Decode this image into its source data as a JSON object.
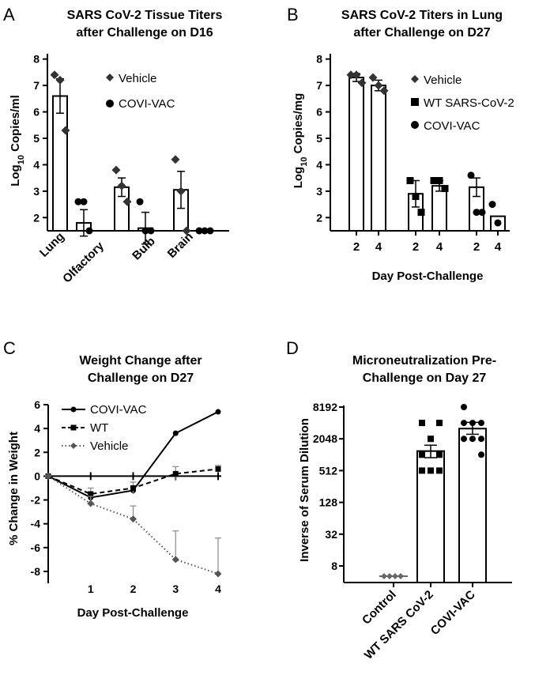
{
  "panels": {
    "A": {
      "letter": "A",
      "title_line1": "SARS CoV-2 Tissue Titers",
      "title_line2": "after Challenge on D16",
      "ylabel_main": "Log",
      "ylabel_sub": "10",
      "ylabel_rest": " Copies/ml",
      "legend": [
        "Vehicle",
        "COVI-VAC"
      ]
    },
    "B": {
      "letter": "B",
      "title_line1": "SARS CoV-2 Titers in Lung",
      "title_line2": "after Challenge on D27",
      "ylabel_main": "Log",
      "ylabel_sub": "10",
      "ylabel_rest": " Copies/mg",
      "xlabel": "Day Post-Challenge",
      "legend": [
        "Vehicle",
        "WT SARS-CoV-2",
        "COVI-VAC"
      ]
    },
    "C": {
      "letter": "C",
      "title_line1": "Weight Change after",
      "title_line2": "Challenge on D27",
      "ylabel": "% Change in Weight",
      "xlabel": "Day Post-Challenge",
      "legend": [
        "COVI-VAC",
        "WT",
        "Vehicle"
      ]
    },
    "D": {
      "letter": "D",
      "title_line1": "Microneutralization Pre-",
      "title_line2": "Challenge on Day 27",
      "ylabel": "Inverse of Serum Dilution"
    }
  },
  "chart_data": [
    {
      "panel": "A",
      "type": "bar",
      "categories": [
        "Lung",
        "Olfactory",
        "Bulb",
        "Brain"
      ],
      "tissues": [
        {
          "labels": [
            "Lung"
          ],
          "vehicle": {
            "mean": 6.6,
            "sem": 0.65,
            "points": [
              7.4,
              7.2,
              5.3
            ]
          },
          "covivac": {
            "mean": 1.8,
            "sem": 0.5,
            "points": [
              2.6,
              2.6,
              1.5
            ]
          }
        },
        {
          "labels": [
            "Olfactory",
            "Bulb"
          ],
          "vehicle": {
            "mean": 3.15,
            "sem": 0.35,
            "points": [
              3.8,
              3.2,
              2.6
            ]
          },
          "covivac": {
            "mean": 1.6,
            "sem": 0.6,
            "points": [
              2.6,
              1.5,
              1.5
            ]
          }
        },
        {
          "labels": [
            "Brain"
          ],
          "vehicle": {
            "mean": 3.05,
            "sem": 0.7,
            "points": [
              4.2,
              3.0,
              1.5
            ]
          },
          "covivac": {
            "mean": 1.5,
            "sem": 0,
            "points": [
              1.5,
              1.5,
              1.5
            ]
          }
        }
      ],
      "yticks": [
        2,
        3,
        4,
        5,
        6,
        7,
        8
      ],
      "ylim": [
        1.5,
        8.2
      ],
      "ylabel": "Log10 Copies/ml"
    },
    {
      "panel": "B",
      "type": "bar",
      "groups": [
        "Vehicle",
        "WT SARS-CoV-2",
        "COVI-VAC"
      ],
      "days": [
        "2",
        "4"
      ],
      "bars": [
        {
          "group": "Vehicle",
          "day": "2",
          "mean": 7.3,
          "sem": 0.15,
          "points": [
            7.4,
            7.4,
            7.1
          ]
        },
        {
          "group": "Vehicle",
          "day": "4",
          "mean": 7.0,
          "sem": 0.2,
          "points": [
            7.3,
            7.0,
            6.8
          ]
        },
        {
          "group": "WT SARS-CoV-2",
          "day": "2",
          "mean": 2.9,
          "sem": 0.5,
          "points": [
            3.4,
            2.8,
            2.2
          ]
        },
        {
          "group": "WT SARS-CoV-2",
          "day": "4",
          "mean": 3.2,
          "sem": 0.2,
          "points": [
            3.4,
            3.4,
            3.1
          ]
        },
        {
          "group": "COVI-VAC",
          "day": "2",
          "mean": 3.15,
          "sem": 0.35,
          "points": [
            3.6,
            2.2,
            2.2
          ]
        },
        {
          "group": "COVI-VAC",
          "day": "4",
          "mean": 2.05,
          "sem": 0,
          "points": [
            2.5,
            1.8
          ]
        }
      ],
      "yticks": [
        2,
        3,
        4,
        5,
        6,
        7,
        8
      ],
      "ylim": [
        1.5,
        8.2
      ],
      "xlabel": "Day Post-Challenge",
      "ylabel": "Log10 Copies/mg"
    },
    {
      "panel": "C",
      "type": "line",
      "x": [
        0,
        1,
        2,
        3,
        4
      ],
      "xticks": [
        1,
        2,
        3,
        4
      ],
      "yticks": [
        6,
        4,
        2,
        0,
        -2,
        -4,
        -6,
        -8
      ],
      "ylim": [
        -9,
        6
      ],
      "series": [
        {
          "name": "COVI-VAC",
          "style": "solid",
          "marker": "circle",
          "values": [
            0,
            -1.8,
            -1.2,
            3.6,
            5.4
          ],
          "err": [
            0,
            0.3,
            0.3,
            0,
            0
          ]
        },
        {
          "name": "WT",
          "style": "dashed",
          "marker": "square",
          "values": [
            0,
            -1.5,
            -1.0,
            0.2,
            0.6
          ],
          "err": [
            0,
            0.5,
            0.5,
            0.6,
            0.3
          ]
        },
        {
          "name": "Vehicle",
          "style": "dotted",
          "marker": "diamond",
          "values": [
            0,
            -2.3,
            -3.6,
            -7.0,
            -8.2
          ],
          "err": [
            0,
            0.6,
            1.1,
            2.4,
            3.0
          ]
        }
      ],
      "xlabel": "Day Post-Challenge",
      "ylabel": "% Change in Weight"
    },
    {
      "panel": "D",
      "type": "bar",
      "scale": "log2",
      "categories": [
        "Control",
        "WT SARS CoV-2",
        "COVI-VAC"
      ],
      "yticks": [
        "8192",
        "2048",
        "512",
        "128",
        "32",
        "8"
      ],
      "bars": [
        {
          "name": "Control",
          "mean": 5,
          "points": [
            5,
            5,
            5,
            5,
            5,
            5,
            5,
            5
          ]
        },
        {
          "name": "WT SARS CoV-2",
          "mean": 1200,
          "err_low": 900,
          "err_high": 1550,
          "points": [
            4096,
            4096,
            2048,
            1024,
            1024,
            512,
            512,
            512
          ]
        },
        {
          "name": "COVI-VAC",
          "mean": 3200,
          "err_low": 2500,
          "err_high": 4200,
          "points": [
            8192,
            4096,
            4096,
            4096,
            2048,
            2048,
            2048,
            1024
          ]
        }
      ],
      "ylabel": "Inverse of Serum Dilution"
    }
  ]
}
